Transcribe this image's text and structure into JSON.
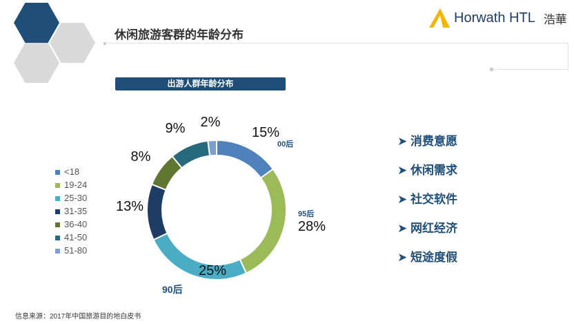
{
  "header": {
    "title": "休闲旅游客群的年龄分布",
    "logo_brand": "Horwath HTL",
    "logo_cn": "浩華"
  },
  "subtitle": "出游人群年龄分布",
  "chart_data": {
    "type": "pie",
    "variant": "donut",
    "categories": [
      "<18",
      "19-24",
      "25-30",
      "31-35",
      "36-40",
      "41-50",
      "51-80"
    ],
    "values": [
      15,
      28,
      25,
      13,
      8,
      9,
      2
    ],
    "labels": [
      "15%",
      "28%",
      "25%",
      "13%",
      "8%",
      "9%",
      "2%"
    ],
    "colors": [
      "#4f81bd",
      "#9bbb59",
      "#4bacc6",
      "#1f3c64",
      "#5f7530",
      "#276a7c",
      "#7ba0cd"
    ],
    "annotations": [
      "00后",
      "95后",
      "90后"
    ],
    "legend_position": "left"
  },
  "bullets": [
    "消费意愿",
    "休闲需求",
    "社交软件",
    "网红经济",
    "短途度假"
  ],
  "footer": "信息来源：2017年中国旅游目的地白皮书"
}
